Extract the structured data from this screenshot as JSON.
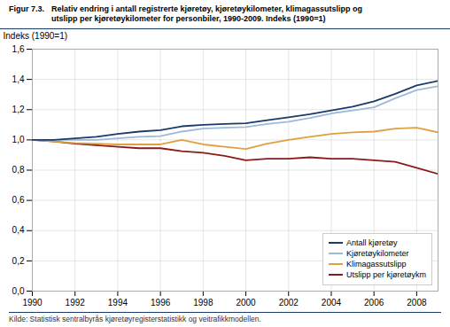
{
  "chart_data": {
    "type": "line",
    "title": "Figur 7.3.",
    "subtitle": "Relativ endring i antall registrerte kjøretøy, kjøretøykilometer, klimagassutslipp og\nutslipp per kjøretøykilometer for personbiler, 1990-2009. Indeks (1990=1)",
    "y_label": "Indeks (1990=1)",
    "annotations": [
      "Kilde: Statistisk sentralbyrås kjøretøyregisterstatistikk og veitrafikkmodellen."
    ],
    "x": [
      1990,
      1991,
      1992,
      1993,
      1994,
      1995,
      1996,
      1997,
      1998,
      1999,
      2000,
      2001,
      2002,
      2003,
      2004,
      2005,
      2006,
      2007,
      2008,
      2009
    ],
    "series": [
      {
        "name": "Antall kjøretøy",
        "color": "#1a3a6b",
        "values": [
          1.0,
          1.0,
          1.01,
          1.02,
          1.04,
          1.055,
          1.065,
          1.09,
          1.1,
          1.105,
          1.11,
          1.13,
          1.15,
          1.17,
          1.195,
          1.22,
          1.255,
          1.305,
          1.36,
          1.39
        ]
      },
      {
        "name": "Kjøretøykilometer",
        "color": "#9dbad8",
        "values": [
          1.0,
          1.0,
          1.0,
          1.0,
          1.01,
          1.02,
          1.025,
          1.055,
          1.075,
          1.08,
          1.085,
          1.105,
          1.12,
          1.145,
          1.175,
          1.195,
          1.215,
          1.275,
          1.33,
          1.355
        ]
      },
      {
        "name": "Klimagassutslipp",
        "color": "#dfa040",
        "values": [
          1.0,
          0.99,
          0.98,
          0.975,
          0.97,
          0.97,
          0.97,
          1.0,
          0.97,
          0.955,
          0.94,
          0.975,
          1.0,
          1.02,
          1.04,
          1.05,
          1.055,
          1.075,
          1.08,
          1.05
        ]
      },
      {
        "name": "Utslipp per kjøretøykm",
        "color": "#8b1a1a",
        "values": [
          1.0,
          0.99,
          0.975,
          0.965,
          0.955,
          0.945,
          0.945,
          0.925,
          0.915,
          0.895,
          0.865,
          0.875,
          0.875,
          0.885,
          0.875,
          0.875,
          0.865,
          0.855,
          0.815,
          0.775
        ]
      }
    ],
    "xlim": [
      1990,
      2009
    ],
    "xticks": [
      1990,
      1992,
      1994,
      1996,
      1998,
      2000,
      2002,
      2004,
      2006,
      2008
    ],
    "ylim": [
      0.0,
      1.6
    ],
    "yticks": [
      {
        "value": 0.0,
        "label": "0,0"
      },
      {
        "value": 0.2,
        "label": "0,2"
      },
      {
        "value": 0.4,
        "label": "0,4"
      },
      {
        "value": 0.6,
        "label": "0,6"
      },
      {
        "value": 0.8,
        "label": "0,8"
      },
      {
        "value": 1.0,
        "label": "1,0"
      },
      {
        "value": 1.2,
        "label": "1,2"
      },
      {
        "value": 1.4,
        "label": "1,4"
      },
      {
        "value": 1.6,
        "label": "1,6"
      }
    ],
    "grid": true,
    "legend": "lower right"
  }
}
